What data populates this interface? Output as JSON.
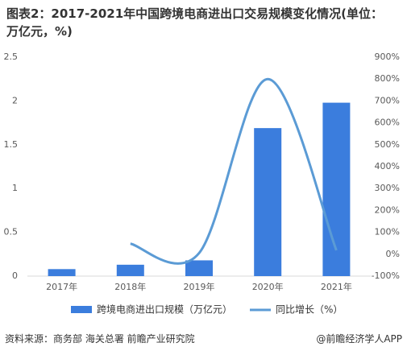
{
  "chart_data": {
    "type": "bar-line",
    "title": "图表2：2017-2021年中国跨境电商进出口交易规模变化情况(单位：万亿元，%)",
    "categories": [
      "2017年",
      "2018年",
      "2019年",
      "2020年",
      "2021年"
    ],
    "series": [
      {
        "name": "跨境电商进出口规模（万亿元）",
        "type": "bar",
        "color": "#3b7ddd",
        "values": [
          0.08,
          0.13,
          0.18,
          1.69,
          1.98
        ]
      },
      {
        "name": "同比增长（%）",
        "type": "line",
        "axis": "y2",
        "color": "#5b9bd5",
        "values": [
          null,
          48,
          5,
          800,
          18
        ]
      }
    ],
    "ylim": [
      0,
      2.5
    ],
    "yticks": [
      0,
      0.5,
      1,
      1.5,
      2,
      2.5
    ],
    "y2lim": [
      -100,
      900
    ],
    "y2ticks": [
      {
        "value": -100,
        "label": "-100%"
      },
      {
        "value": 0,
        "label": "0%"
      },
      {
        "value": 100,
        "label": "100%"
      },
      {
        "value": 200,
        "label": "200%"
      },
      {
        "value": 300,
        "label": "300%"
      },
      {
        "value": 400,
        "label": "400%"
      },
      {
        "value": 500,
        "label": "500%"
      },
      {
        "value": 600,
        "label": "600%"
      },
      {
        "value": 700,
        "label": "700%"
      },
      {
        "value": 800,
        "label": "800%"
      },
      {
        "value": 900,
        "label": "900%"
      }
    ],
    "source": "资料来源：商务部 海关总署 前瞻产业研究院",
    "brand": "@前瞻经济学人APP"
  }
}
